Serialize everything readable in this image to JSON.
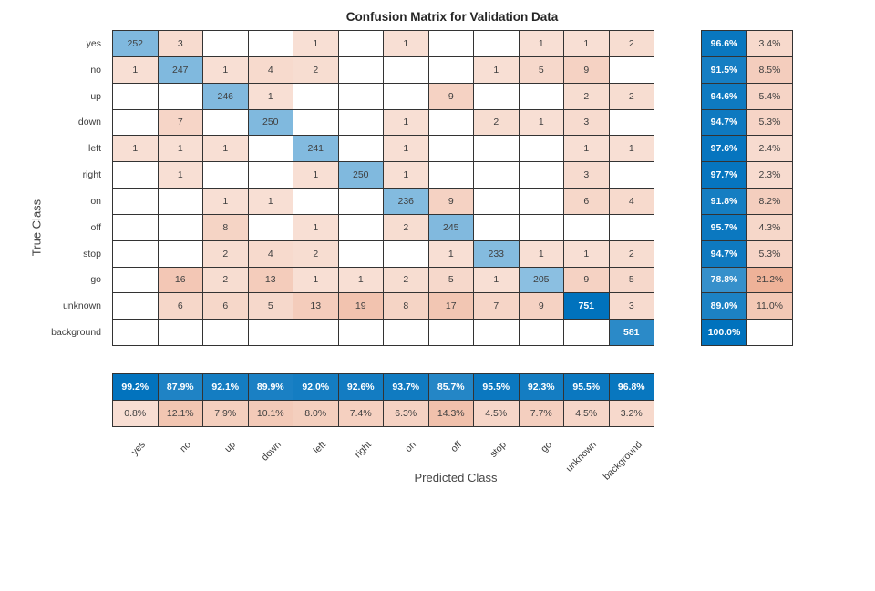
{
  "chart_data": {
    "type": "heatmap",
    "subtype": "confusion-matrix",
    "title": "Confusion Matrix for Validation Data",
    "xlabel": "Predicted Class",
    "ylabel": "True Class",
    "classes": [
      "yes",
      "no",
      "up",
      "down",
      "left",
      "right",
      "on",
      "off",
      "stop",
      "go",
      "unknown",
      "background"
    ],
    "matrix": [
      [
        252,
        3,
        0,
        0,
        1,
        0,
        1,
        0,
        0,
        1,
        1,
        2
      ],
      [
        1,
        247,
        1,
        4,
        2,
        0,
        0,
        0,
        1,
        5,
        9,
        0
      ],
      [
        0,
        0,
        246,
        1,
        0,
        0,
        0,
        9,
        0,
        0,
        2,
        2
      ],
      [
        0,
        7,
        0,
        250,
        0,
        0,
        1,
        0,
        2,
        1,
        3,
        0
      ],
      [
        1,
        1,
        1,
        0,
        241,
        0,
        1,
        0,
        0,
        0,
        1,
        1
      ],
      [
        0,
        1,
        0,
        0,
        1,
        250,
        1,
        0,
        0,
        0,
        3,
        0
      ],
      [
        0,
        0,
        1,
        1,
        0,
        0,
        236,
        9,
        0,
        0,
        6,
        4
      ],
      [
        0,
        0,
        8,
        0,
        1,
        0,
        2,
        245,
        0,
        0,
        0,
        0
      ],
      [
        0,
        0,
        2,
        4,
        2,
        0,
        0,
        1,
        233,
        1,
        1,
        2
      ],
      [
        0,
        16,
        2,
        13,
        1,
        1,
        2,
        5,
        1,
        205,
        9,
        5
      ],
      [
        0,
        6,
        6,
        5,
        13,
        19,
        8,
        17,
        7,
        9,
        751,
        3
      ],
      [
        0,
        0,
        0,
        0,
        0,
        0,
        0,
        0,
        0,
        0,
        0,
        581
      ]
    ],
    "row_summary_correct": [
      "96.6%",
      "91.5%",
      "94.6%",
      "94.7%",
      "97.6%",
      "97.7%",
      "91.8%",
      "95.7%",
      "94.7%",
      "78.8%",
      "89.0%",
      "100.0%"
    ],
    "row_summary_error": [
      "3.4%",
      "8.5%",
      "5.4%",
      "5.3%",
      "2.4%",
      "2.3%",
      "8.2%",
      "4.3%",
      "5.3%",
      "21.2%",
      "11.0%",
      ""
    ],
    "col_summary_correct": [
      "99.2%",
      "87.9%",
      "92.1%",
      "89.9%",
      "92.0%",
      "92.6%",
      "93.7%",
      "85.7%",
      "95.5%",
      "92.3%",
      "95.5%",
      "96.8%"
    ],
    "col_summary_error": [
      "0.8%",
      "12.1%",
      "7.9%",
      "10.1%",
      "8.0%",
      "7.4%",
      "6.3%",
      "14.3%",
      "4.5%",
      "7.7%",
      "4.5%",
      "3.2%"
    ],
    "max_diagonal": 751,
    "max_off_diagonal": 19,
    "layout": {
      "grid": "on",
      "summary_columns": "right",
      "summary_rows": "bottom",
      "x_tick_rotation": 45
    },
    "colors": {
      "diagonal_base": "#0072BD",
      "off_diagonal_base": "#D95319",
      "grid_line": "#333333",
      "cell_text": "#3f3f3f",
      "inverse_text": "#ffffff",
      "background": "#ffffff"
    }
  }
}
